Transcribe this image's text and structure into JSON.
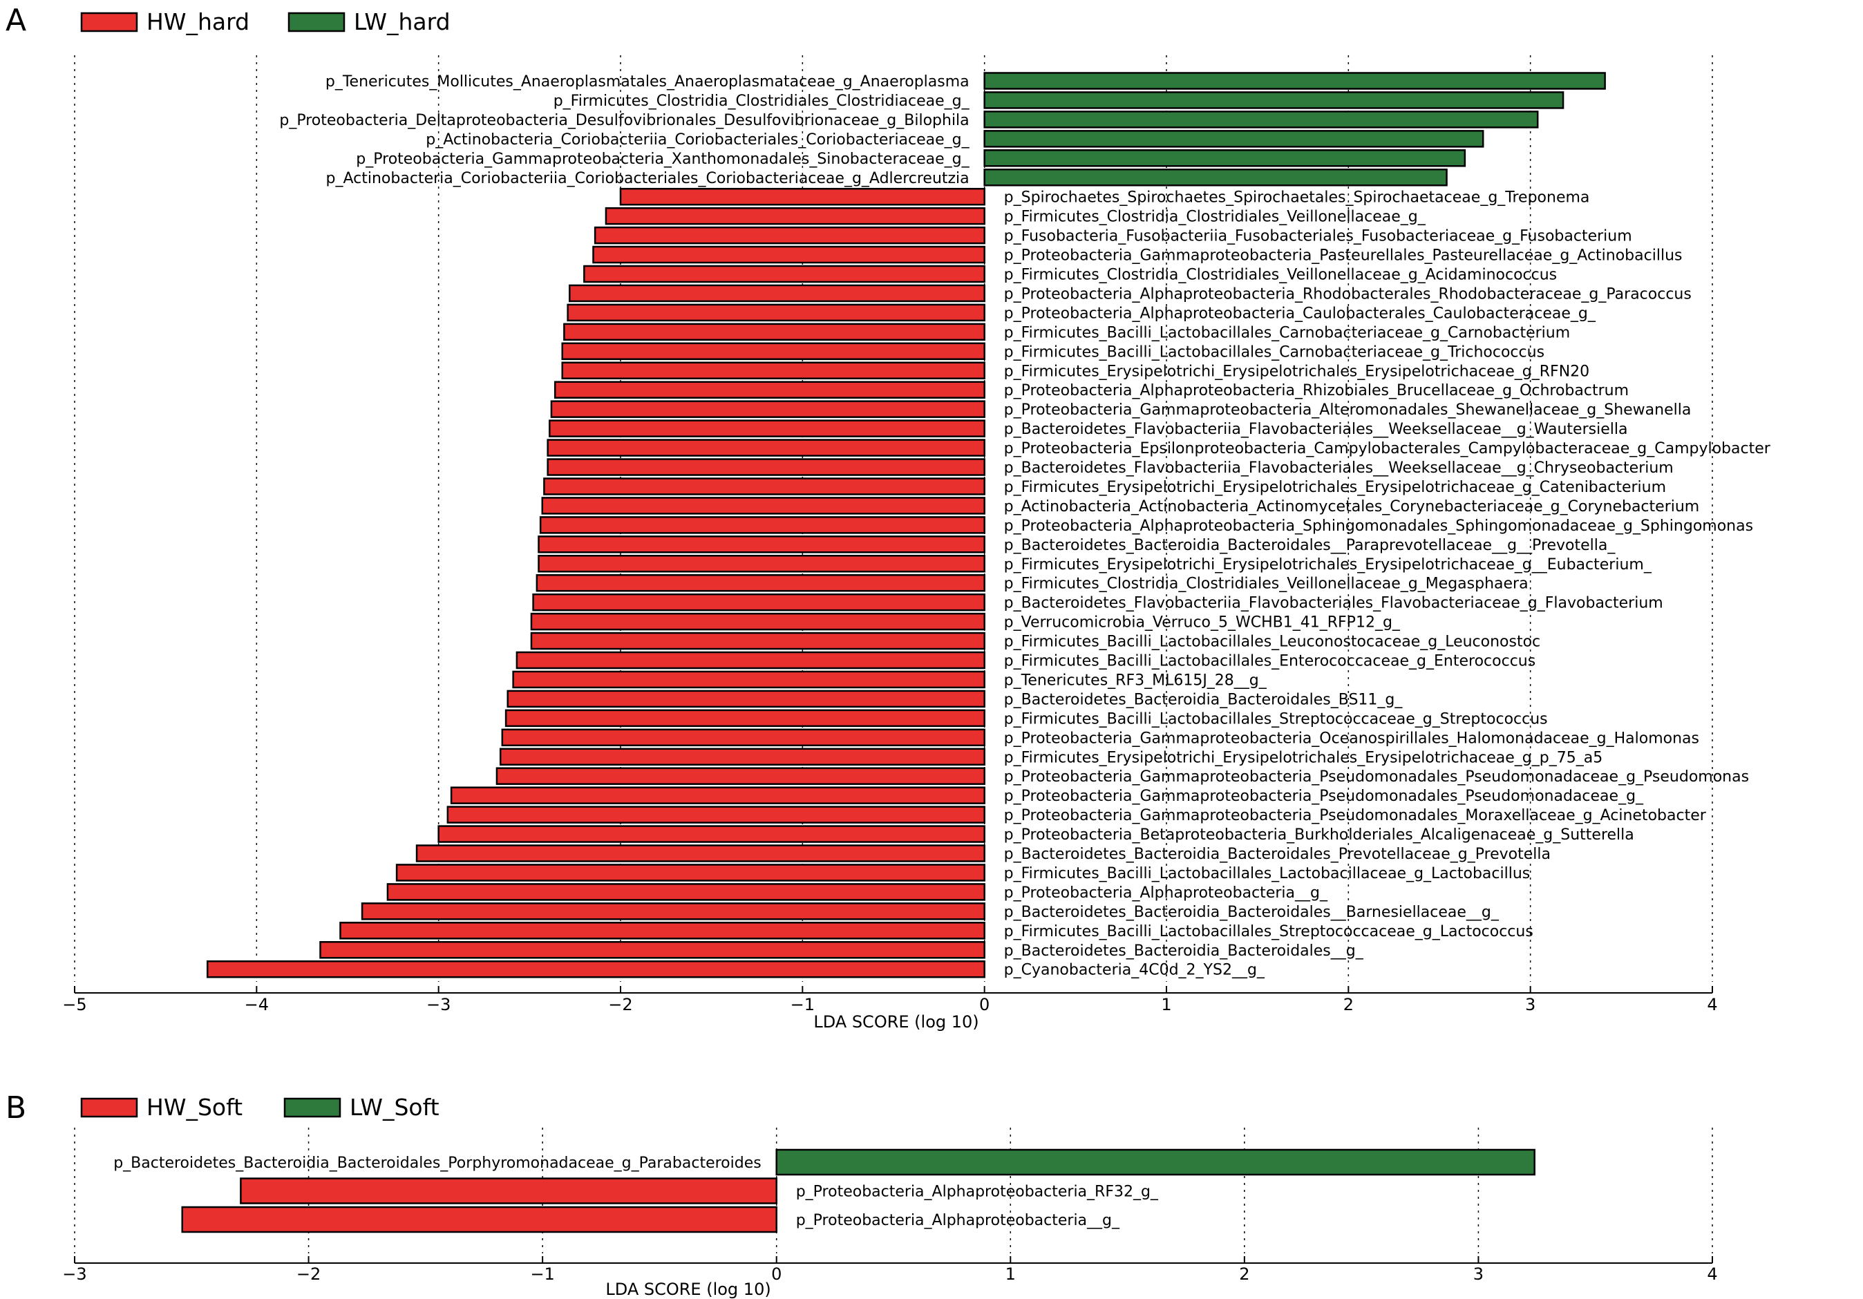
{
  "chart_data": [
    {
      "panel": "A",
      "type": "bar",
      "orientation": "horizontal",
      "xlabel": "LDA SCORE (log 10)",
      "xlim": [
        -5,
        4
      ],
      "xticks": [
        -5,
        -4,
        -3,
        -2,
        -1,
        0,
        1,
        2,
        3,
        4
      ],
      "xtick_labels": [
        "−5",
        "−4",
        "−3",
        "−2",
        "−1",
        "0",
        "1",
        "2",
        "3",
        "4"
      ],
      "grid": "vertical dotted",
      "legend": [
        {
          "name": "HW_hard",
          "color": "#e8302e"
        },
        {
          "name": "LW_hard",
          "color": "#2e7a3c"
        }
      ],
      "features": [
        {
          "label": "p_Tenericutes_Mollicutes_Anaeroplasmatales_Anaeroplasmataceae_g_Anaeroplasma",
          "value": 3.41,
          "group": "LW_hard"
        },
        {
          "label": "p_Firmicutes_Clostridia_Clostridiales_Clostridiaceae_g_",
          "value": 3.18,
          "group": "LW_hard"
        },
        {
          "label": "p_Proteobacteria_Deltaproteobacteria_Desulfovibrionales_Desulfovibrionaceae_g_Bilophila",
          "value": 3.04,
          "group": "LW_hard"
        },
        {
          "label": "p_Actinobacteria_Coriobacteriia_Coriobacteriales_Coriobacteriaceae_g_",
          "value": 2.74,
          "group": "LW_hard"
        },
        {
          "label": "p_Proteobacteria_Gammaproteobacteria_Xanthomonadales_Sinobacteraceae_g_",
          "value": 2.64,
          "group": "LW_hard"
        },
        {
          "label": "p_Actinobacteria_Coriobacteriia_Coriobacteriales_Coriobacteriaceae_g_Adlercreutzia",
          "value": 2.54,
          "group": "LW_hard"
        },
        {
          "label": "p_Spirochaetes_Spirochaetes_Spirochaetales_Spirochaetaceae_g_Treponema",
          "value": -2.0,
          "group": "HW_hard"
        },
        {
          "label": "p_Firmicutes_Clostridia_Clostridiales_Veillonellaceae_g_",
          "value": -2.08,
          "group": "HW_hard"
        },
        {
          "label": "p_Fusobacteria_Fusobacteriia_Fusobacteriales_Fusobacteriaceae_g_Fusobacterium",
          "value": -2.14,
          "group": "HW_hard"
        },
        {
          "label": "p_Proteobacteria_Gammaproteobacteria_Pasteurellales_Pasteurellaceae_g_Actinobacillus",
          "value": -2.15,
          "group": "HW_hard"
        },
        {
          "label": "p_Firmicutes_Clostridia_Clostridiales_Veillonellaceae_g_Acidaminococcus",
          "value": -2.2,
          "group": "HW_hard"
        },
        {
          "label": "p_Proteobacteria_Alphaproteobacteria_Rhodobacterales_Rhodobacteraceae_g_Paracoccus",
          "value": -2.28,
          "group": "HW_hard"
        },
        {
          "label": "p_Proteobacteria_Alphaproteobacteria_Caulobacterales_Caulobacteraceae_g_",
          "value": -2.29,
          "group": "HW_hard"
        },
        {
          "label": "p_Firmicutes_Bacilli_Lactobacillales_Carnobacteriaceae_g_Carnobacterium",
          "value": -2.31,
          "group": "HW_hard"
        },
        {
          "label": "p_Firmicutes_Bacilli_Lactobacillales_Carnobacteriaceae_g_Trichococcus",
          "value": -2.32,
          "group": "HW_hard"
        },
        {
          "label": "p_Firmicutes_Erysipelotrichi_Erysipelotrichales_Erysipelotrichaceae_g_RFN20",
          "value": -2.32,
          "group": "HW_hard"
        },
        {
          "label": "p_Proteobacteria_Alphaproteobacteria_Rhizobiales_Brucellaceae_g_Ochrobactrum",
          "value": -2.36,
          "group": "HW_hard"
        },
        {
          "label": "p_Proteobacteria_Gammaproteobacteria_Alteromonadales_Shewanellaceae_g_Shewanella",
          "value": -2.38,
          "group": "HW_hard"
        },
        {
          "label": "p_Bacteroidetes_Flavobacteriia_Flavobacteriales__Weeksellaceae__g_Wautersiella",
          "value": -2.39,
          "group": "HW_hard"
        },
        {
          "label": "p_Proteobacteria_Epsilonproteobacteria_Campylobacterales_Campylobacteraceae_g_Campylobacter",
          "value": -2.4,
          "group": "HW_hard"
        },
        {
          "label": "p_Bacteroidetes_Flavobacteriia_Flavobacteriales__Weeksellaceae__g_Chryseobacterium",
          "value": -2.4,
          "group": "HW_hard"
        },
        {
          "label": "p_Firmicutes_Erysipelotrichi_Erysipelotrichales_Erysipelotrichaceae_g_Catenibacterium",
          "value": -2.42,
          "group": "HW_hard"
        },
        {
          "label": "p_Actinobacteria_Actinobacteria_Actinomycetales_Corynebacteriaceae_g_Corynebacterium",
          "value": -2.43,
          "group": "HW_hard"
        },
        {
          "label": "p_Proteobacteria_Alphaproteobacteria_Sphingomonadales_Sphingomonadaceae_g_Sphingomonas",
          "value": -2.44,
          "group": "HW_hard"
        },
        {
          "label": "p_Bacteroidetes_Bacteroidia_Bacteroidales__Paraprevotellaceae__g__Prevotella_",
          "value": -2.45,
          "group": "HW_hard"
        },
        {
          "label": "p_Firmicutes_Erysipelotrichi_Erysipelotrichales_Erysipelotrichaceae_g__Eubacterium_",
          "value": -2.45,
          "group": "HW_hard"
        },
        {
          "label": "p_Firmicutes_Clostridia_Clostridiales_Veillonellaceae_g_Megasphaera",
          "value": -2.46,
          "group": "HW_hard"
        },
        {
          "label": "p_Bacteroidetes_Flavobacteriia_Flavobacteriales_Flavobacteriaceae_g_Flavobacterium",
          "value": -2.48,
          "group": "HW_hard"
        },
        {
          "label": "p_Verrucomicrobia_Verruco_5_WCHB1_41_RFP12_g_",
          "value": -2.49,
          "group": "HW_hard"
        },
        {
          "label": "p_Firmicutes_Bacilli_Lactobacillales_Leuconostocaceae_g_Leuconostoc",
          "value": -2.49,
          "group": "HW_hard"
        },
        {
          "label": "p_Firmicutes_Bacilli_Lactobacillales_Enterococcaceae_g_Enterococcus",
          "value": -2.57,
          "group": "HW_hard"
        },
        {
          "label": "p_Tenericutes_RF3_ML615J_28__g_",
          "value": -2.59,
          "group": "HW_hard"
        },
        {
          "label": "p_Bacteroidetes_Bacteroidia_Bacteroidales_BS11_g_",
          "value": -2.62,
          "group": "HW_hard"
        },
        {
          "label": "p_Firmicutes_Bacilli_Lactobacillales_Streptococcaceae_g_Streptococcus",
          "value": -2.63,
          "group": "HW_hard"
        },
        {
          "label": "p_Proteobacteria_Gammaproteobacteria_Oceanospirillales_Halomonadaceae_g_Halomonas",
          "value": -2.65,
          "group": "HW_hard"
        },
        {
          "label": "p_Firmicutes_Erysipelotrichi_Erysipelotrichales_Erysipelotrichaceae_g_p_75_a5",
          "value": -2.66,
          "group": "HW_hard"
        },
        {
          "label": "p_Proteobacteria_Gammaproteobacteria_Pseudomonadales_Pseudomonadaceae_g_Pseudomonas",
          "value": -2.68,
          "group": "HW_hard"
        },
        {
          "label": "p_Proteobacteria_Gammaproteobacteria_Pseudomonadales_Pseudomonadaceae_g_",
          "value": -2.93,
          "group": "HW_hard"
        },
        {
          "label": "p_Proteobacteria_Gammaproteobacteria_Pseudomonadales_Moraxellaceae_g_Acinetobacter",
          "value": -2.95,
          "group": "HW_hard"
        },
        {
          "label": "p_Proteobacteria_Betaproteobacteria_Burkholderiales_Alcaligenaceae_g_Sutterella",
          "value": -3.0,
          "group": "HW_hard"
        },
        {
          "label": "p_Bacteroidetes_Bacteroidia_Bacteroidales_Prevotellaceae_g_Prevotella",
          "value": -3.12,
          "group": "HW_hard"
        },
        {
          "label": "p_Firmicutes_Bacilli_Lactobacillales_Lactobacillaceae_g_Lactobacillus",
          "value": -3.23,
          "group": "HW_hard"
        },
        {
          "label": "p_Proteobacteria_Alphaproteobacteria__g_",
          "value": -3.28,
          "group": "HW_hard"
        },
        {
          "label": "p_Bacteroidetes_Bacteroidia_Bacteroidales__Barnesiellaceae__g_",
          "value": -3.42,
          "group": "HW_hard"
        },
        {
          "label": "p_Firmicutes_Bacilli_Lactobacillales_Streptococcaceae_g_Lactococcus",
          "value": -3.54,
          "group": "HW_hard"
        },
        {
          "label": "p_Bacteroidetes_Bacteroidia_Bacteroidales__g_",
          "value": -3.65,
          "group": "HW_hard"
        },
        {
          "label": "p_Cyanobacteria_4C0d_2_YS2__g_",
          "value": -4.27,
          "group": "HW_hard"
        }
      ]
    },
    {
      "panel": "B",
      "type": "bar",
      "orientation": "horizontal",
      "xlabel": "LDA SCORE (log 10)",
      "xlim": [
        -3,
        4
      ],
      "xticks": [
        -3,
        -2,
        -1,
        0,
        1,
        2,
        3,
        4
      ],
      "xtick_labels": [
        "−3",
        "−2",
        "−1",
        "0",
        "1",
        "2",
        "3",
        "4"
      ],
      "grid": "vertical dotted",
      "legend": [
        {
          "name": "HW_Soft",
          "color": "#e8302e"
        },
        {
          "name": "LW_Soft",
          "color": "#2e7a3c"
        }
      ],
      "features": [
        {
          "label": "p_Bacteroidetes_Bacteroidia_Bacteroidales_Porphyromonadaceae_g_Parabacteroides",
          "value": 3.24,
          "group": "LW_Soft"
        },
        {
          "label": "p_Proteobacteria_Alphaproteobacteria_RF32_g_",
          "value": -2.29,
          "group": "HW_Soft"
        },
        {
          "label": "p_Proteobacteria_Alphaproteobacteria__g_",
          "value": -2.54,
          "group": "HW_Soft"
        }
      ]
    }
  ]
}
